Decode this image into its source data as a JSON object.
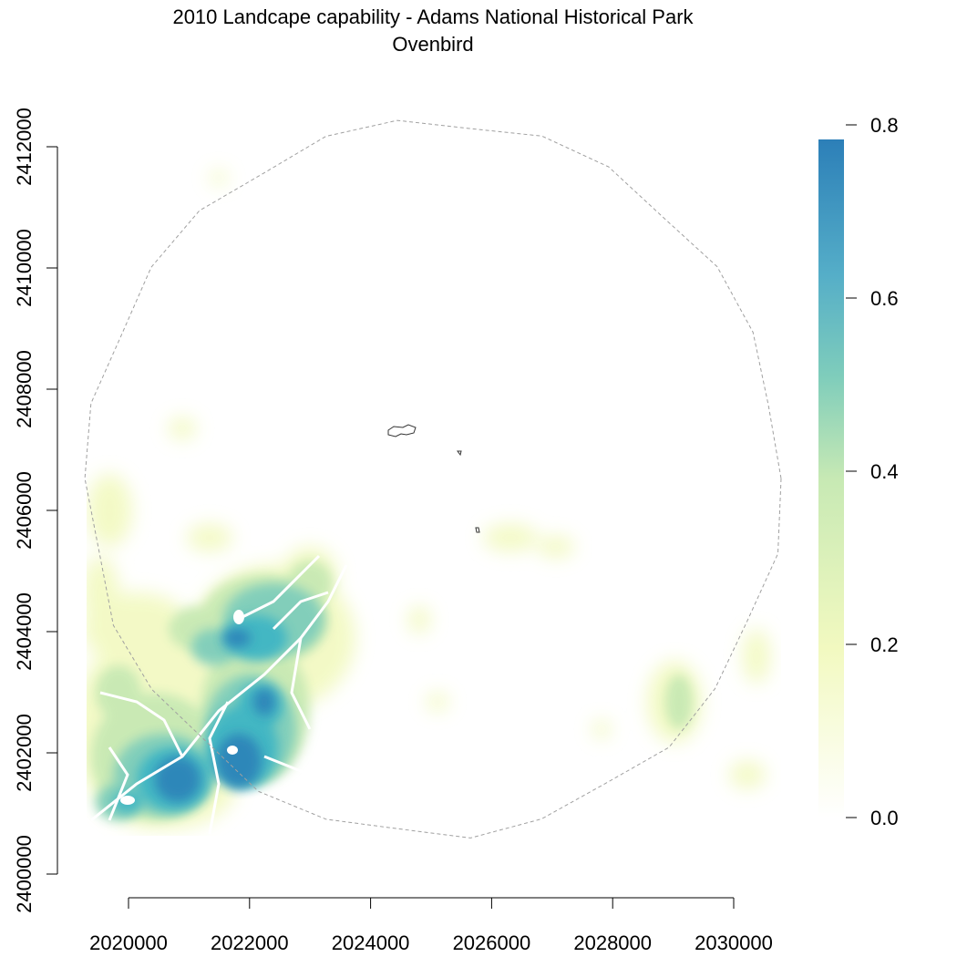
{
  "title": {
    "line1": "2010 Landcape capability - Adams National Historical Park",
    "line2": "Ovenbird"
  },
  "x_axis": {
    "ticks": [
      "2020000",
      "2022000",
      "2024000",
      "2026000",
      "2028000",
      "2030000"
    ],
    "range": [
      2020000,
      2030000
    ]
  },
  "y_axis": {
    "ticks": [
      "2400000",
      "2402000",
      "2404000",
      "2406000",
      "2408000",
      "2410000",
      "2412000"
    ],
    "range": [
      2400000,
      2412000
    ]
  },
  "legend": {
    "ticks": [
      "0.0",
      "0.2",
      "0.4",
      "0.6",
      "0.8"
    ],
    "range": [
      0,
      0.8
    ],
    "max_value": 0.78,
    "colors": [
      "#ffffff",
      "#f2f9c0",
      "#c7e9b4",
      "#7fcdbb",
      "#41b6c4",
      "#2c7fb8"
    ]
  },
  "map": {
    "raster": "landscape capability",
    "study_area_outline": "dashed gray buffer circle",
    "park_boundary": "solid dark outline"
  }
}
